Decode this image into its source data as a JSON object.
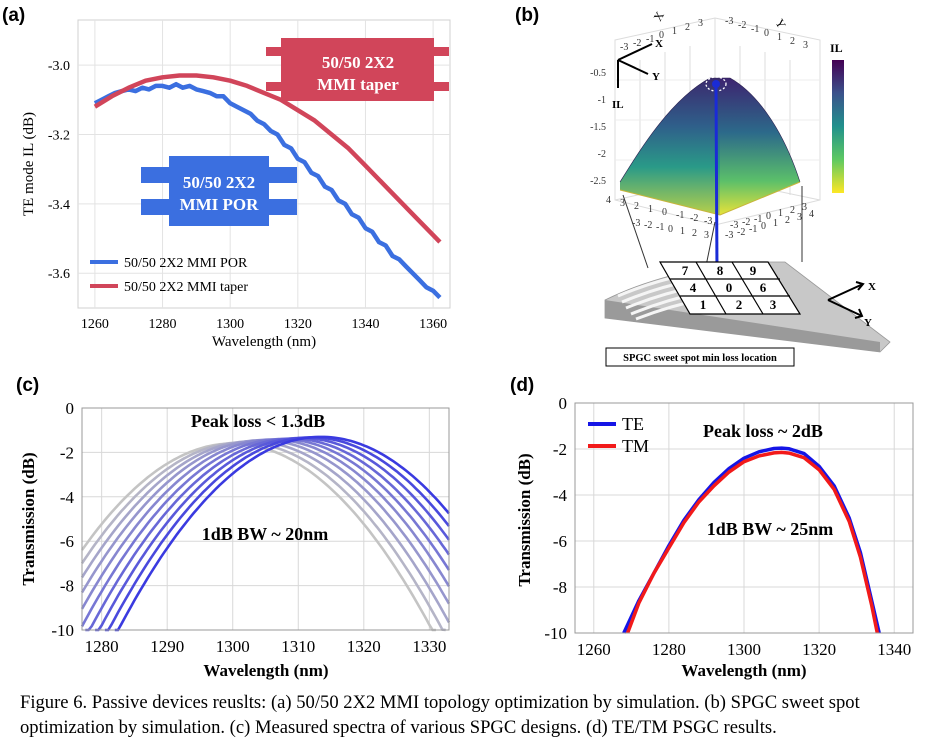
{
  "figure": {
    "caption": "Figure 6. Passive devices reuslts: (a) 50/50 2X2 MMI topology optimization by simulation. (b) SPGC sweet spot optimization by simulation. (c) Measured spectra of various SPGC designs. (d) TE/TM PSGC results."
  },
  "panels": {
    "a": {
      "label": "(a)"
    },
    "b": {
      "label": "(b)"
    },
    "c": {
      "label": "(c)"
    },
    "d": {
      "label": "(d)"
    }
  },
  "panel_a": {
    "taper_box": [
      "50/50 2X2",
      "MMI taper"
    ],
    "por_box": [
      "50/50 2X2",
      "MMI POR"
    ],
    "colors": {
      "por": "#3b6fe0",
      "taper": "#d1455a"
    }
  },
  "panel_b": {
    "axes": {
      "x": "X",
      "y": "Y",
      "z": "IL"
    },
    "colorbar_label": "IL",
    "colorbar_ticks": [
      "-0.5",
      "-1",
      "-1.5",
      "-2",
      "-2.5"
    ],
    "front_ticks": [
      "4",
      "3",
      "2",
      "1",
      "0",
      "-1",
      "-2",
      "-3"
    ],
    "right_ticks": [
      "-3",
      "-2",
      "-1",
      "0",
      "1",
      "2",
      "3",
      "4"
    ],
    "top_ticks_a": [
      "-3",
      "-2",
      "-1",
      "0",
      "1",
      "2",
      "3"
    ],
    "top_ticks_b": [
      "-3",
      "-2",
      "-1",
      "0",
      "1",
      "2",
      "3"
    ],
    "floor_ticks_a": [
      "-3",
      "-2",
      "-1",
      "0",
      "1",
      "2",
      "3"
    ],
    "floor_ticks_b": [
      "-3",
      "-2",
      "-1",
      "0",
      "1",
      "2",
      "3"
    ],
    "grid_cells": [
      "7",
      "8",
      "9",
      "4",
      "0",
      "6",
      "1",
      "2",
      "3"
    ],
    "caption_box": "SPGC sweet spot min loss location"
  },
  "panel_c": {
    "annotations": {
      "peak": "Peak loss < 1.3dB",
      "bw": "1dB BW ~ 20nm"
    },
    "colors": {
      "start": "#c4c4c4",
      "end": "#3a3ae0"
    }
  },
  "panel_d": {
    "annotations": {
      "peak": "Peak loss ~ 2dB",
      "bw": "1dB BW ~ 25nm"
    },
    "colors": {
      "te": "#1515e6",
      "tm": "#f21a1a"
    }
  },
  "chart_data": [
    {
      "id": "a",
      "type": "line",
      "xlabel": "Wavelength (nm)",
      "ylabel": "TE mode IL (dB)",
      "xlim": [
        1255,
        1365
      ],
      "ylim": [
        -3.7,
        -2.87
      ],
      "xticks": [
        1260,
        1280,
        1300,
        1320,
        1340,
        1360
      ],
      "yticks": [
        -3.0,
        -3.2,
        -3.4,
        -3.6
      ],
      "legend_position": "bottom-left",
      "series": [
        {
          "name": "50/50 2X2 MMI POR",
          "x": [
            1260,
            1262,
            1264,
            1266,
            1268,
            1270,
            1272,
            1274,
            1276,
            1278,
            1280,
            1282,
            1284,
            1286,
            1288,
            1290,
            1292,
            1294,
            1296,
            1298,
            1300,
            1302,
            1304,
            1306,
            1308,
            1310,
            1312,
            1314,
            1316,
            1318,
            1320,
            1322,
            1324,
            1326,
            1328,
            1330,
            1332,
            1334,
            1336,
            1338,
            1340,
            1342,
            1344,
            1346,
            1348,
            1350,
            1352,
            1354,
            1356,
            1358,
            1360,
            1362
          ],
          "y": [
            -3.11,
            -3.1,
            -3.09,
            -3.08,
            -3.075,
            -3.07,
            -3.075,
            -3.065,
            -3.07,
            -3.06,
            -3.06,
            -3.065,
            -3.055,
            -3.065,
            -3.06,
            -3.07,
            -3.075,
            -3.08,
            -3.09,
            -3.09,
            -3.11,
            -3.12,
            -3.13,
            -3.14,
            -3.16,
            -3.17,
            -3.19,
            -3.2,
            -3.23,
            -3.24,
            -3.27,
            -3.28,
            -3.31,
            -3.32,
            -3.35,
            -3.36,
            -3.39,
            -3.4,
            -3.43,
            -3.44,
            -3.47,
            -3.48,
            -3.51,
            -3.52,
            -3.55,
            -3.56,
            -3.58,
            -3.6,
            -3.62,
            -3.64,
            -3.65,
            -3.67
          ]
        },
        {
          "name": "50/50 2X2 MMI taper",
          "x": [
            1260,
            1265,
            1270,
            1275,
            1280,
            1285,
            1290,
            1295,
            1300,
            1305,
            1310,
            1315,
            1320,
            1325,
            1330,
            1335,
            1340,
            1345,
            1350,
            1355,
            1360,
            1362
          ],
          "y": [
            -3.12,
            -3.09,
            -3.065,
            -3.045,
            -3.035,
            -3.03,
            -3.03,
            -3.035,
            -3.045,
            -3.06,
            -3.08,
            -3.1,
            -3.13,
            -3.16,
            -3.2,
            -3.24,
            -3.29,
            -3.34,
            -3.39,
            -3.44,
            -3.49,
            -3.51
          ]
        }
      ]
    },
    {
      "id": "b",
      "type": "heatmap",
      "zlabel": "IL",
      "peak_location": {
        "x": 0,
        "y": 0
      },
      "colorbar_range": [
        -2.8,
        -0.3
      ]
    },
    {
      "id": "c",
      "type": "line",
      "xlabel": "Wavelength (nm)",
      "ylabel": "Transmission (dB)",
      "xlim": [
        1277,
        1333
      ],
      "ylim": [
        -10,
        0
      ],
      "xticks": [
        1280,
        1290,
        1300,
        1310,
        1320,
        1330
      ],
      "yticks": [
        0,
        -2,
        -4,
        -6,
        -8,
        -10
      ],
      "series": [
        {
          "center": 1300,
          "peak": -1.6,
          "width": 10.5
        },
        {
          "center": 1301.5,
          "peak": -1.55,
          "width": 10.5
        },
        {
          "center": 1303,
          "peak": -1.5,
          "width": 10.5
        },
        {
          "center": 1304.5,
          "peak": -1.45,
          "width": 10.5
        },
        {
          "center": 1306,
          "peak": -1.42,
          "width": 10.5
        },
        {
          "center": 1307.5,
          "peak": -1.4,
          "width": 10.5
        },
        {
          "center": 1309,
          "peak": -1.38,
          "width": 10.5
        },
        {
          "center": 1310.5,
          "peak": -1.35,
          "width": 10.5
        },
        {
          "center": 1312,
          "peak": -1.32,
          "width": 10.5
        },
        {
          "center": 1313.5,
          "peak": -1.3,
          "width": 10.5
        }
      ]
    },
    {
      "id": "d",
      "type": "line",
      "xlabel": "Wavelength (nm)",
      "ylabel": "Transmission (dB)",
      "xlim": [
        1255,
        1345
      ],
      "ylim": [
        -10,
        0
      ],
      "xticks": [
        1260,
        1280,
        1300,
        1320,
        1340
      ],
      "yticks": [
        0,
        -2,
        -4,
        -6,
        -8,
        -10
      ],
      "legend_position": "top-left",
      "series": [
        {
          "name": "TE",
          "x": [
            1268,
            1272,
            1276,
            1280,
            1284,
            1288,
            1292,
            1296,
            1300,
            1304,
            1308,
            1310,
            1312,
            1316,
            1320,
            1324,
            1328,
            1331,
            1334,
            1336
          ],
          "y": [
            -10,
            -8.6,
            -7.4,
            -6.2,
            -5.1,
            -4.2,
            -3.45,
            -2.85,
            -2.4,
            -2.12,
            -1.98,
            -1.96,
            -1.99,
            -2.2,
            -2.75,
            -3.6,
            -5.0,
            -6.5,
            -8.6,
            -10
          ]
        },
        {
          "name": "TM",
          "x": [
            1269,
            1272,
            1276,
            1280,
            1284,
            1288,
            1292,
            1296,
            1300,
            1304,
            1308,
            1310,
            1312,
            1316,
            1320,
            1324,
            1328,
            1331,
            1334,
            1335.5
          ],
          "y": [
            -10,
            -8.7,
            -7.4,
            -6.3,
            -5.2,
            -4.3,
            -3.6,
            -3.0,
            -2.55,
            -2.3,
            -2.17,
            -2.15,
            -2.18,
            -2.38,
            -2.9,
            -3.75,
            -5.15,
            -6.7,
            -8.8,
            -10
          ]
        }
      ]
    }
  ]
}
